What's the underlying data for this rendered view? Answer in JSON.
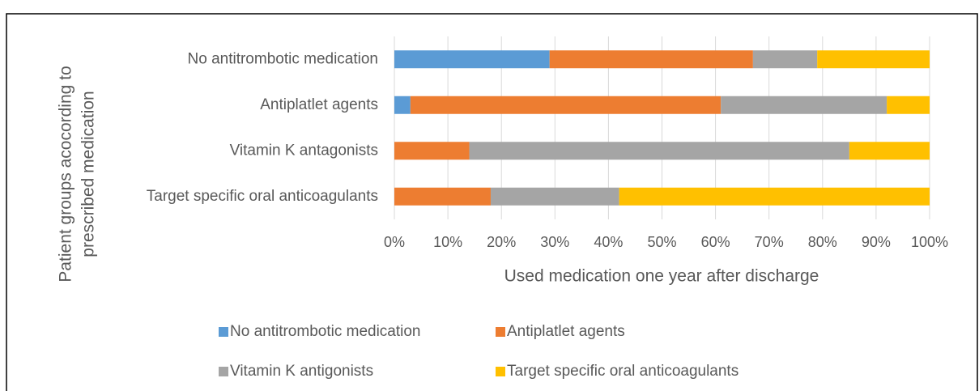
{
  "chart_data": {
    "type": "stacked_barh",
    "categories": [
      "No antitrombotic medication",
      "Antiplatlet agents",
      "Vitamin K antagonists",
      "Target specific oral anticoagulants"
    ],
    "series": [
      {
        "name": "No antitrombotic medication",
        "color": "#5b9bd5",
        "values": [
          29,
          3,
          0,
          0
        ]
      },
      {
        "name": "Antiplatlet agents",
        "color": "#ed7d31",
        "values": [
          38,
          58,
          14,
          18
        ]
      },
      {
        "name": "Vitamin K antigonists",
        "color": "#a5a5a5",
        "values": [
          12,
          31,
          71,
          24
        ]
      },
      {
        "name": "Target specific oral anticoagulants",
        "color": "#ffc000",
        "values": [
          21,
          8,
          15,
          58
        ]
      }
    ],
    "xlim": [
      0,
      100
    ],
    "xticks": [
      {
        "value": 0,
        "label": "0%"
      },
      {
        "value": 10,
        "label": "10%"
      },
      {
        "value": 20,
        "label": "20%"
      },
      {
        "value": 30,
        "label": "30%"
      },
      {
        "value": 40,
        "label": "40%"
      },
      {
        "value": 50,
        "label": "50%"
      },
      {
        "value": 60,
        "label": "60%"
      },
      {
        "value": 70,
        "label": "70%"
      },
      {
        "value": 80,
        "label": "80%"
      },
      {
        "value": 90,
        "label": "90%"
      },
      {
        "value": 100,
        "label": "100%"
      }
    ],
    "xlabel": "Used medication one year after discharge",
    "ylabel": [
      "Patient groups acocording to",
      "prescribed medication"
    ],
    "grid": true
  }
}
